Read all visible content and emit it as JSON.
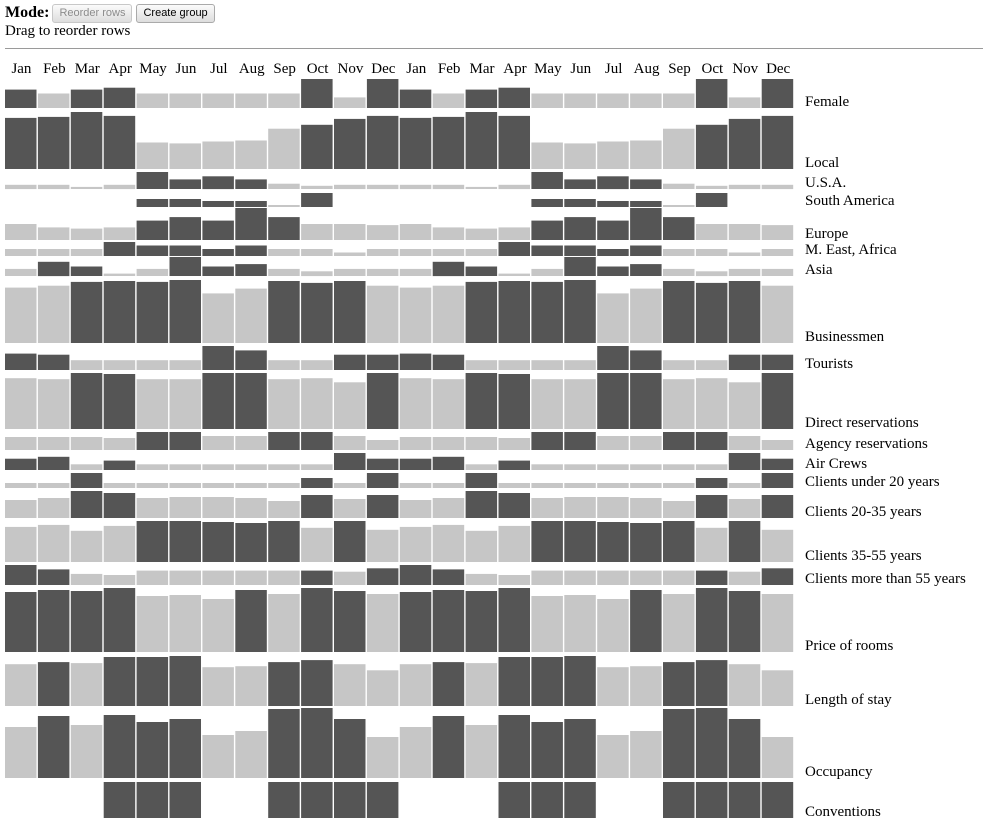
{
  "toolbar": {
    "mode_label": "Mode:",
    "reorder_label": "Reorder rows",
    "group_label": "Create group"
  },
  "status_text": "Drag to reorder rows",
  "colors": {
    "dark": "#555555",
    "light": "#c6c6c6",
    "rule": "#9a9a9a"
  },
  "chart_data": {
    "type": "bar",
    "months": [
      "Jan",
      "Feb",
      "Mar",
      "Apr",
      "May",
      "Jun",
      "Jul",
      "Aug",
      "Sep",
      "Oct",
      "Nov",
      "Dec",
      "Jan",
      "Feb",
      "Mar",
      "Apr",
      "May",
      "Jun",
      "Jul",
      "Aug",
      "Sep",
      "Oct",
      "Nov",
      "Dec"
    ],
    "rows": [
      {
        "label": "Female",
        "values": [
          19,
          15,
          19,
          21,
          15,
          15,
          15,
          15,
          15,
          30,
          11,
          30
        ],
        "highlight": [
          1,
          0,
          1,
          1,
          0,
          0,
          0,
          0,
          0,
          1,
          0,
          1
        ]
      },
      {
        "label": "Local",
        "values": [
          52,
          53,
          58,
          54,
          27,
          26,
          28,
          29,
          41,
          45,
          51,
          54
        ],
        "highlight": [
          1,
          1,
          1,
          1,
          0,
          0,
          0,
          0,
          0,
          1,
          1,
          1
        ]
      },
      {
        "label": "U.S.A.",
        "values": [
          4,
          4,
          2,
          4,
          16,
          9,
          12,
          9,
          5,
          3,
          4,
          4
        ],
        "highlight": [
          0,
          0,
          0,
          0,
          1,
          1,
          1,
          1,
          0,
          0,
          0,
          0
        ]
      },
      {
        "label": "South America",
        "values": [
          0,
          0,
          0,
          0,
          4,
          4,
          3,
          3,
          1,
          7,
          0,
          0
        ],
        "highlight": [
          0,
          0,
          0,
          0,
          1,
          1,
          1,
          1,
          0,
          1,
          0,
          0
        ]
      },
      {
        "label": "Europe",
        "values": [
          14,
          11,
          10,
          11,
          17,
          20,
          17,
          28,
          20,
          14,
          14,
          13
        ],
        "highlight": [
          0,
          0,
          0,
          0,
          1,
          1,
          1,
          1,
          1,
          0,
          0,
          0
        ]
      },
      {
        "label": "M. East, Africa",
        "values": [
          2,
          2,
          2,
          4,
          3,
          3,
          2,
          3,
          2,
          2,
          1,
          2
        ],
        "highlight": [
          0,
          0,
          0,
          1,
          1,
          1,
          1,
          1,
          0,
          0,
          0,
          0
        ]
      },
      {
        "label": "Asia",
        "values": [
          3,
          6,
          4,
          1,
          3,
          8,
          4,
          5,
          3,
          2,
          3,
          3
        ],
        "highlight": [
          0,
          1,
          1,
          0,
          0,
          1,
          1,
          1,
          0,
          0,
          0,
          0
        ]
      },
      {
        "label": "Businessmen",
        "values": [
          58,
          60,
          64,
          65,
          64,
          66,
          52,
          57,
          65,
          63,
          65,
          60
        ],
        "highlight": [
          0,
          0,
          1,
          1,
          1,
          1,
          0,
          0,
          1,
          1,
          1,
          0
        ]
      },
      {
        "label": "Tourists",
        "values": [
          15,
          14,
          9,
          9,
          9,
          9,
          22,
          18,
          9,
          9,
          14,
          14
        ],
        "highlight": [
          1,
          1,
          0,
          0,
          0,
          0,
          1,
          1,
          0,
          0,
          1,
          1
        ]
      },
      {
        "label": "Direct reservations",
        "values": [
          49,
          48,
          54,
          53,
          48,
          48,
          54,
          54,
          48,
          49,
          45,
          54
        ],
        "highlight": [
          0,
          0,
          1,
          1,
          0,
          0,
          1,
          1,
          0,
          0,
          0,
          1
        ]
      },
      {
        "label": "Agency reservations",
        "values": [
          13,
          13,
          13,
          12,
          18,
          18,
          14,
          14,
          18,
          18,
          14,
          10
        ],
        "highlight": [
          0,
          0,
          0,
          0,
          1,
          1,
          0,
          0,
          1,
          1,
          0,
          0
        ]
      },
      {
        "label": "Air Crews",
        "values": [
          6,
          7,
          3,
          5,
          3,
          3,
          3,
          3,
          3,
          3,
          9,
          6
        ],
        "highlight": [
          1,
          1,
          0,
          1,
          0,
          0,
          0,
          0,
          0,
          0,
          1,
          1
        ]
      },
      {
        "label": "Clients under 20 years",
        "values": [
          1,
          1,
          3,
          1,
          1,
          1,
          1,
          1,
          1,
          2,
          1,
          3
        ],
        "highlight": [
          0,
          0,
          1,
          0,
          0,
          0,
          0,
          0,
          0,
          1,
          0,
          1
        ]
      },
      {
        "label": "Clients 20-35 years",
        "values": [
          18,
          20,
          27,
          25,
          20,
          21,
          21,
          20,
          17,
          23,
          19,
          23
        ],
        "highlight": [
          0,
          0,
          1,
          1,
          0,
          0,
          0,
          0,
          0,
          1,
          0,
          1
        ]
      },
      {
        "label": "Clients 35-55 years",
        "values": [
          36,
          38,
          32,
          37,
          42,
          42,
          41,
          40,
          42,
          35,
          42,
          33
        ],
        "highlight": [
          0,
          0,
          0,
          0,
          1,
          1,
          1,
          1,
          1,
          0,
          1,
          0
        ]
      },
      {
        "label": "Clients more than 55 years",
        "values": [
          18,
          14,
          10,
          9,
          13,
          13,
          13,
          13,
          13,
          13,
          12,
          15
        ],
        "highlight": [
          1,
          1,
          0,
          0,
          0,
          0,
          0,
          0,
          0,
          1,
          0,
          1
        ]
      },
      {
        "label": "Price of rooms",
        "values": [
          60,
          62,
          61,
          64,
          56,
          57,
          53,
          62,
          58,
          64,
          61,
          58
        ],
        "highlight": [
          1,
          1,
          1,
          1,
          0,
          0,
          0,
          1,
          0,
          1,
          1,
          0
        ]
      },
      {
        "label": "Length of stay",
        "values": [
          41,
          43,
          42,
          48,
          48,
          49,
          38,
          39,
          43,
          45,
          41,
          35
        ],
        "highlight": [
          0,
          1,
          0,
          1,
          1,
          1,
          0,
          0,
          1,
          1,
          0,
          0
        ]
      },
      {
        "label": "Occupancy",
        "values": [
          51,
          62,
          53,
          63,
          56,
          59,
          43,
          47,
          69,
          70,
          59,
          41
        ],
        "highlight": [
          0,
          1,
          0,
          1,
          1,
          1,
          0,
          0,
          1,
          1,
          1,
          0
        ]
      },
      {
        "label": "Conventions",
        "values": [
          0,
          0,
          0,
          37,
          37,
          37,
          0,
          0,
          37,
          37,
          37,
          37
        ],
        "highlight": [
          0,
          0,
          0,
          1,
          1,
          1,
          0,
          0,
          1,
          1,
          1,
          1
        ]
      }
    ]
  }
}
